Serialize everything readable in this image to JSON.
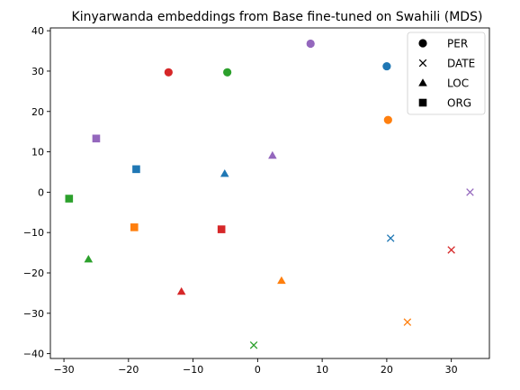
{
  "chart_data": {
    "type": "scatter",
    "title": "Kinyarwanda embeddings from Base fine-tuned on Swahili (MDS)",
    "xlabel": "",
    "ylabel": "",
    "xlim": [
      -32.1,
      35.9
    ],
    "ylim": [
      -41.2,
      40.7
    ],
    "xticks": [
      -30,
      -20,
      -10,
      0,
      10,
      20,
      30
    ],
    "yticks": [
      -40,
      -30,
      -20,
      -10,
      0,
      10,
      20,
      30,
      40
    ],
    "grid": false,
    "legend_position": "top-right",
    "legend": [
      {
        "label": "PER",
        "marker": "circle"
      },
      {
        "label": "DATE",
        "marker": "x"
      },
      {
        "label": "LOC",
        "marker": "triangle"
      },
      {
        "label": "ORG",
        "marker": "square"
      }
    ],
    "colors": {
      "blue": "#1f77b4",
      "orange": "#ff7f0e",
      "green": "#2ca02c",
      "red": "#d62728",
      "purple": "#9467bd"
    },
    "points": [
      {
        "x": 8.2,
        "y": 36.8,
        "marker": "circle",
        "color": "purple"
      },
      {
        "x": -13.8,
        "y": 29.7,
        "marker": "circle",
        "color": "red"
      },
      {
        "x": -4.7,
        "y": 29.7,
        "marker": "circle",
        "color": "green"
      },
      {
        "x": 20.0,
        "y": 31.2,
        "marker": "circle",
        "color": "blue"
      },
      {
        "x": 20.2,
        "y": 17.9,
        "marker": "circle",
        "color": "orange"
      },
      {
        "x": 20.6,
        "y": -11.4,
        "marker": "x",
        "color": "blue"
      },
      {
        "x": 30.0,
        "y": -14.3,
        "marker": "x",
        "color": "red"
      },
      {
        "x": 32.9,
        "y": 0.0,
        "marker": "x",
        "color": "purple"
      },
      {
        "x": 23.2,
        "y": -32.2,
        "marker": "x",
        "color": "orange"
      },
      {
        "x": -0.6,
        "y": -37.9,
        "marker": "x",
        "color": "green"
      },
      {
        "x": -5.1,
        "y": 4.6,
        "marker": "triangle",
        "color": "blue"
      },
      {
        "x": 2.3,
        "y": 9.1,
        "marker": "triangle",
        "color": "purple"
      },
      {
        "x": -26.2,
        "y": -16.6,
        "marker": "triangle",
        "color": "green"
      },
      {
        "x": -11.8,
        "y": -24.6,
        "marker": "triangle",
        "color": "red"
      },
      {
        "x": 3.7,
        "y": -21.9,
        "marker": "triangle",
        "color": "orange"
      },
      {
        "x": -25.0,
        "y": 13.3,
        "marker": "square",
        "color": "purple"
      },
      {
        "x": -18.8,
        "y": 5.7,
        "marker": "square",
        "color": "blue"
      },
      {
        "x": -29.2,
        "y": -1.6,
        "marker": "square",
        "color": "green"
      },
      {
        "x": -19.1,
        "y": -8.7,
        "marker": "square",
        "color": "orange"
      },
      {
        "x": -5.6,
        "y": -9.2,
        "marker": "square",
        "color": "red"
      }
    ]
  }
}
